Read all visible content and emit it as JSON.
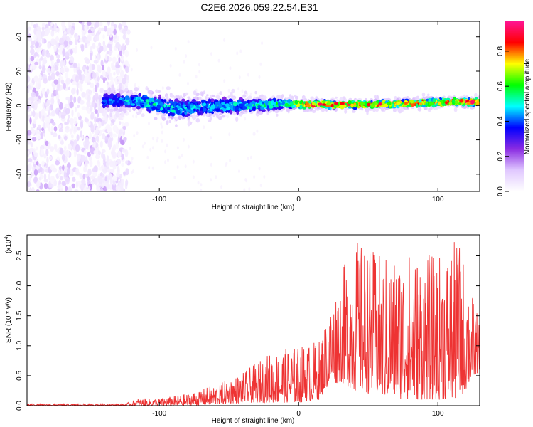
{
  "title": "C2E6.2026.059.22.54.E31",
  "chart_data": [
    {
      "type": "heatmap",
      "description_scale": "spectrogram",
      "xlabel": "Height of straight line (km)",
      "ylabel": "Frequency (Hz)",
      "xlim": [
        -195,
        130
      ],
      "ylim": [
        -50,
        49
      ],
      "xticks": [
        -100,
        0,
        100
      ],
      "xtick_labels": [
        "-100",
        "0",
        "100"
      ],
      "yticks": [
        -40,
        -20,
        0,
        20,
        40
      ],
      "ytick_labels": [
        "-40",
        "-20",
        "0",
        "20",
        "40"
      ],
      "colorbar": {
        "label": "Normalized spectral amplitude",
        "range": [
          0.0,
          0.97
        ],
        "ticks": [
          0.0,
          0.2,
          0.4,
          0.6,
          0.8
        ],
        "tick_labels": [
          "0.0",
          "0.2",
          "0.4",
          "0.6",
          "0.8"
        ],
        "colormap": [
          "#ffffff",
          "#e0c8ff",
          "#8a2be2",
          "#0000ff",
          "#00ffff",
          "#00ff00",
          "#ffff00",
          "#ff0000",
          "#ff1493"
        ]
      },
      "noise_region_end_km": -122,
      "band": [
        {
          "x": -130,
          "center_hz": 3,
          "halfwidth_hz": 6,
          "peak": 0.35
        },
        {
          "x": -110,
          "center_hz": 2,
          "halfwidth_hz": 7,
          "peak": 0.45
        },
        {
          "x": -90,
          "center_hz": -2,
          "halfwidth_hz": 8,
          "peak": 0.4
        },
        {
          "x": -70,
          "center_hz": -1,
          "halfwidth_hz": 7,
          "peak": 0.4
        },
        {
          "x": -50,
          "center_hz": 0,
          "halfwidth_hz": 6,
          "peak": 0.42
        },
        {
          "x": -30,
          "center_hz": 0,
          "halfwidth_hz": 5,
          "peak": 0.45
        },
        {
          "x": -10,
          "center_hz": 1,
          "halfwidth_hz": 4,
          "peak": 0.5
        },
        {
          "x": 10,
          "center_hz": 0.5,
          "halfwidth_hz": 3,
          "peak": 0.85
        },
        {
          "x": 30,
          "center_hz": 0.5,
          "halfwidth_hz": 3,
          "peak": 0.85
        },
        {
          "x": 50,
          "center_hz": 0.5,
          "halfwidth_hz": 3,
          "peak": 0.8
        },
        {
          "x": 70,
          "center_hz": 1,
          "halfwidth_hz": 3,
          "peak": 0.75
        },
        {
          "x": 90,
          "center_hz": 1.5,
          "halfwidth_hz": 3,
          "peak": 0.85
        },
        {
          "x": 110,
          "center_hz": 2,
          "halfwidth_hz": 3,
          "peak": 0.85
        },
        {
          "x": 130,
          "center_hz": 2,
          "halfwidth_hz": 3,
          "peak": 0.8
        }
      ]
    },
    {
      "type": "line",
      "xlabel": "Height of straight line (km)",
      "ylabel": "SNR (10 * v/v)",
      "scale_label": "(x10",
      "scale_exponent": "4",
      "xlim": [
        -195,
        130
      ],
      "ylim": [
        0,
        2.85
      ],
      "xticks": [
        -100,
        0,
        100
      ],
      "xtick_labels": [
        "-100",
        "0",
        "100"
      ],
      "yticks": [
        0.0,
        0.5,
        1.0,
        1.5,
        2.0,
        2.5
      ],
      "ytick_labels": [
        "0.0",
        "0.5",
        "1.0",
        "1.5",
        "2.0",
        "2.5"
      ],
      "color": "#ee3333",
      "envelope": [
        {
          "x": -195,
          "min": 0.0,
          "max": 0.03
        },
        {
          "x": -125,
          "min": 0.0,
          "max": 0.03
        },
        {
          "x": -115,
          "min": 0.0,
          "max": 0.12
        },
        {
          "x": -100,
          "min": 0.0,
          "max": 0.12
        },
        {
          "x": -80,
          "min": 0.0,
          "max": 0.2
        },
        {
          "x": -60,
          "min": 0.02,
          "max": 0.35
        },
        {
          "x": -40,
          "min": 0.05,
          "max": 0.55
        },
        {
          "x": -20,
          "min": 0.05,
          "max": 0.9
        },
        {
          "x": 0,
          "min": 0.05,
          "max": 1.0
        },
        {
          "x": 15,
          "min": 0.1,
          "max": 1.1
        },
        {
          "x": 20,
          "min": 0.3,
          "max": 1.5
        },
        {
          "x": 30,
          "min": 0.4,
          "max": 2.2
        },
        {
          "x": 40,
          "min": 0.25,
          "max": 2.8
        },
        {
          "x": 60,
          "min": 0.15,
          "max": 2.5
        },
        {
          "x": 80,
          "min": 0.1,
          "max": 2.6
        },
        {
          "x": 100,
          "min": 0.1,
          "max": 2.5
        },
        {
          "x": 115,
          "min": 0.1,
          "max": 2.8
        },
        {
          "x": 130,
          "min": 0.6,
          "max": 1.4
        }
      ]
    }
  ]
}
